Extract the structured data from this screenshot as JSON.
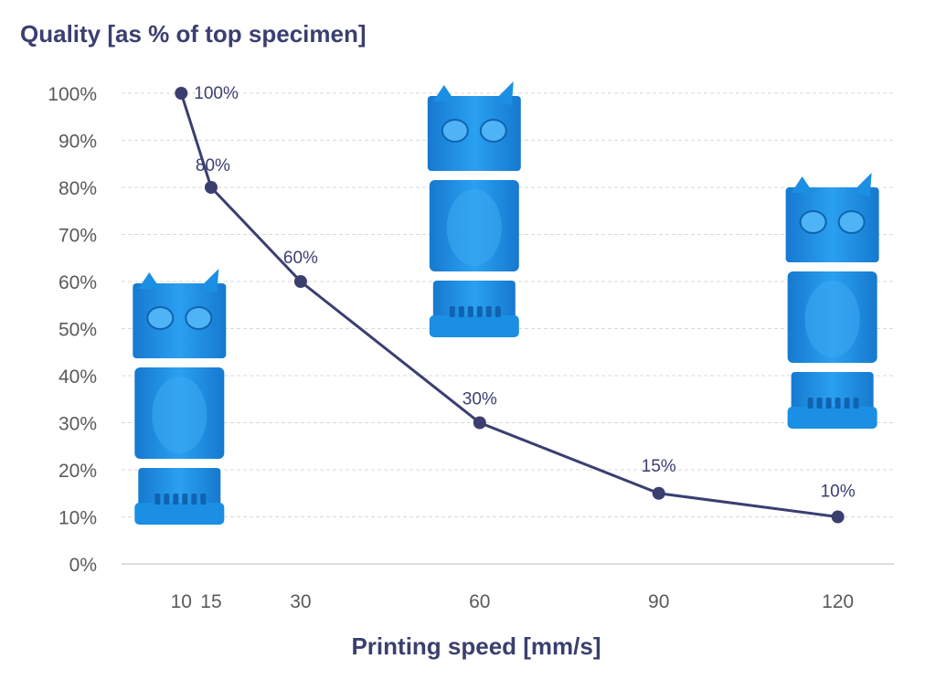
{
  "chart_data": {
    "type": "line",
    "title": "Quality [as % of top specimen]",
    "xlabel": "Printing speed [mm/s]",
    "ylabel": "",
    "x": [
      10,
      15,
      30,
      60,
      90,
      120
    ],
    "x_tick_labels": [
      "10",
      "15",
      "30",
      "60",
      "90",
      "120"
    ],
    "series": [
      {
        "values": [
          100,
          80,
          60,
          30,
          15,
          10
        ],
        "data_labels": [
          "100%",
          "80%",
          "60%",
          "30%",
          "15%",
          "10%"
        ]
      }
    ],
    "y_tick_labels": [
      "0%",
      "10%",
      "20%",
      "30%",
      "40%",
      "50%",
      "60%",
      "70%",
      "80%",
      "90%",
      "100%"
    ],
    "ylim": [
      0,
      100
    ],
    "xlim": [
      0,
      127
    ],
    "grid": true,
    "legend": "none",
    "colors": {
      "line": "#3a3f70",
      "grid": "#d9d9d9",
      "axis": "#d0d0d0",
      "text": "#3a3f70",
      "tick": "#5a5a5a",
      "figure": "#1a8fe3"
    },
    "figure_images": [
      {
        "name": "owl-specimen-10mms",
        "speed": 10
      },
      {
        "name": "owl-specimen-60mms",
        "speed": 60
      },
      {
        "name": "owl-specimen-120mms",
        "speed": 120
      }
    ]
  }
}
